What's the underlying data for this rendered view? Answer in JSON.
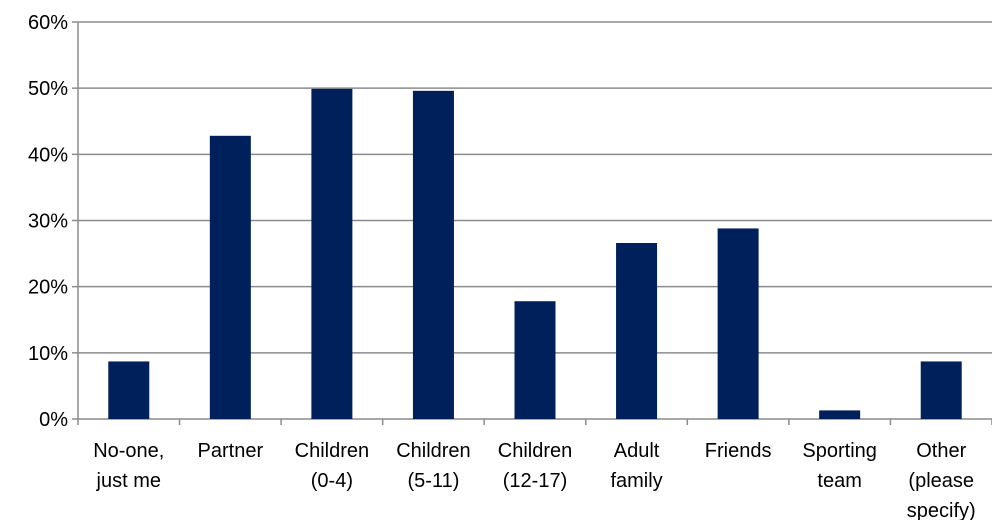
{
  "chart_data": {
    "type": "bar",
    "categories": [
      [
        "No-one,",
        "just me"
      ],
      [
        "Partner"
      ],
      [
        "Children",
        "(0-4)"
      ],
      [
        "Children",
        "(5-11)"
      ],
      [
        "Children",
        "(12-17)"
      ],
      [
        "Adult",
        "family"
      ],
      [
        "Friends"
      ],
      [
        "Sporting",
        "team"
      ],
      [
        "Other",
        "(please",
        "specify)"
      ]
    ],
    "values": [
      8.7,
      42.8,
      49.9,
      49.6,
      17.8,
      26.6,
      28.8,
      1.3,
      8.7
    ],
    "y_ticks": [
      "0%",
      "10%",
      "20%",
      "30%",
      "40%",
      "50%",
      "60%"
    ],
    "ylim": [
      0,
      60
    ],
    "title": "",
    "xlabel": "",
    "ylabel": "",
    "grid": true,
    "legend": "none",
    "bar_color": "#00205b"
  }
}
